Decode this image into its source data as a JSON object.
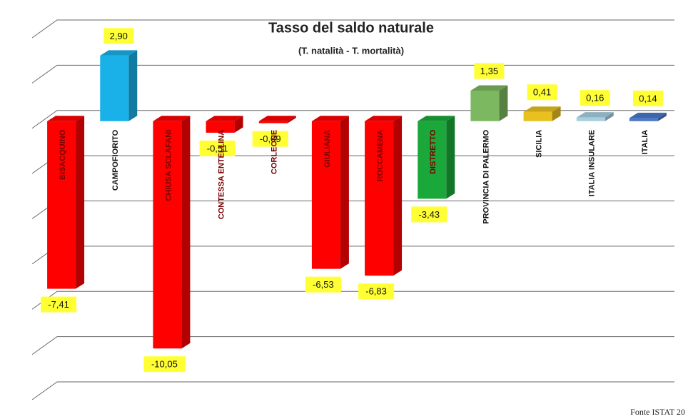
{
  "chart_data": {
    "type": "bar3d",
    "title": "Tasso del saldo naturale",
    "subtitle": "(T. natalità - T. mortalità)",
    "source": "Fonte ISTAT 20",
    "categories": [
      "BISACQUINO",
      "CAMPOFIORITO",
      "CHIUSA SCLAFANI",
      "CONTESSA ENTELLINA",
      "CORLEONE",
      "GIULIANA",
      "ROCCAMENA",
      "DISTRETTO",
      "PROVINCIA DI PALERMO",
      "SICILIA",
      "ITALIA INSULARE",
      "ITALIA"
    ],
    "values": [
      -7.41,
      2.9,
      -10.05,
      -0.51,
      -0.09,
      -6.53,
      -6.83,
      -3.43,
      1.35,
      0.41,
      0.16,
      0.14
    ],
    "value_labels": [
      "-7,41",
      "2,90",
      "-10,05",
      "-0,51",
      "-0,09",
      "-6,53",
      "-6,83",
      "-3,43",
      "1,35",
      "0,41",
      "0,16",
      "0,14"
    ],
    "colors": [
      "#ff0000",
      "#1ab0e8",
      "#ff0000",
      "#ff0000",
      "#ff0000",
      "#ff0000",
      "#ff0000",
      "#1aa83a",
      "#7cb860",
      "#e8c020",
      "#a8cfe0",
      "#4a78c8"
    ],
    "ylim": [
      -12,
      4
    ],
    "yticks": [
      -12,
      -10,
      -8,
      -6,
      -4,
      -2,
      0,
      2,
      4
    ],
    "grid": true
  }
}
